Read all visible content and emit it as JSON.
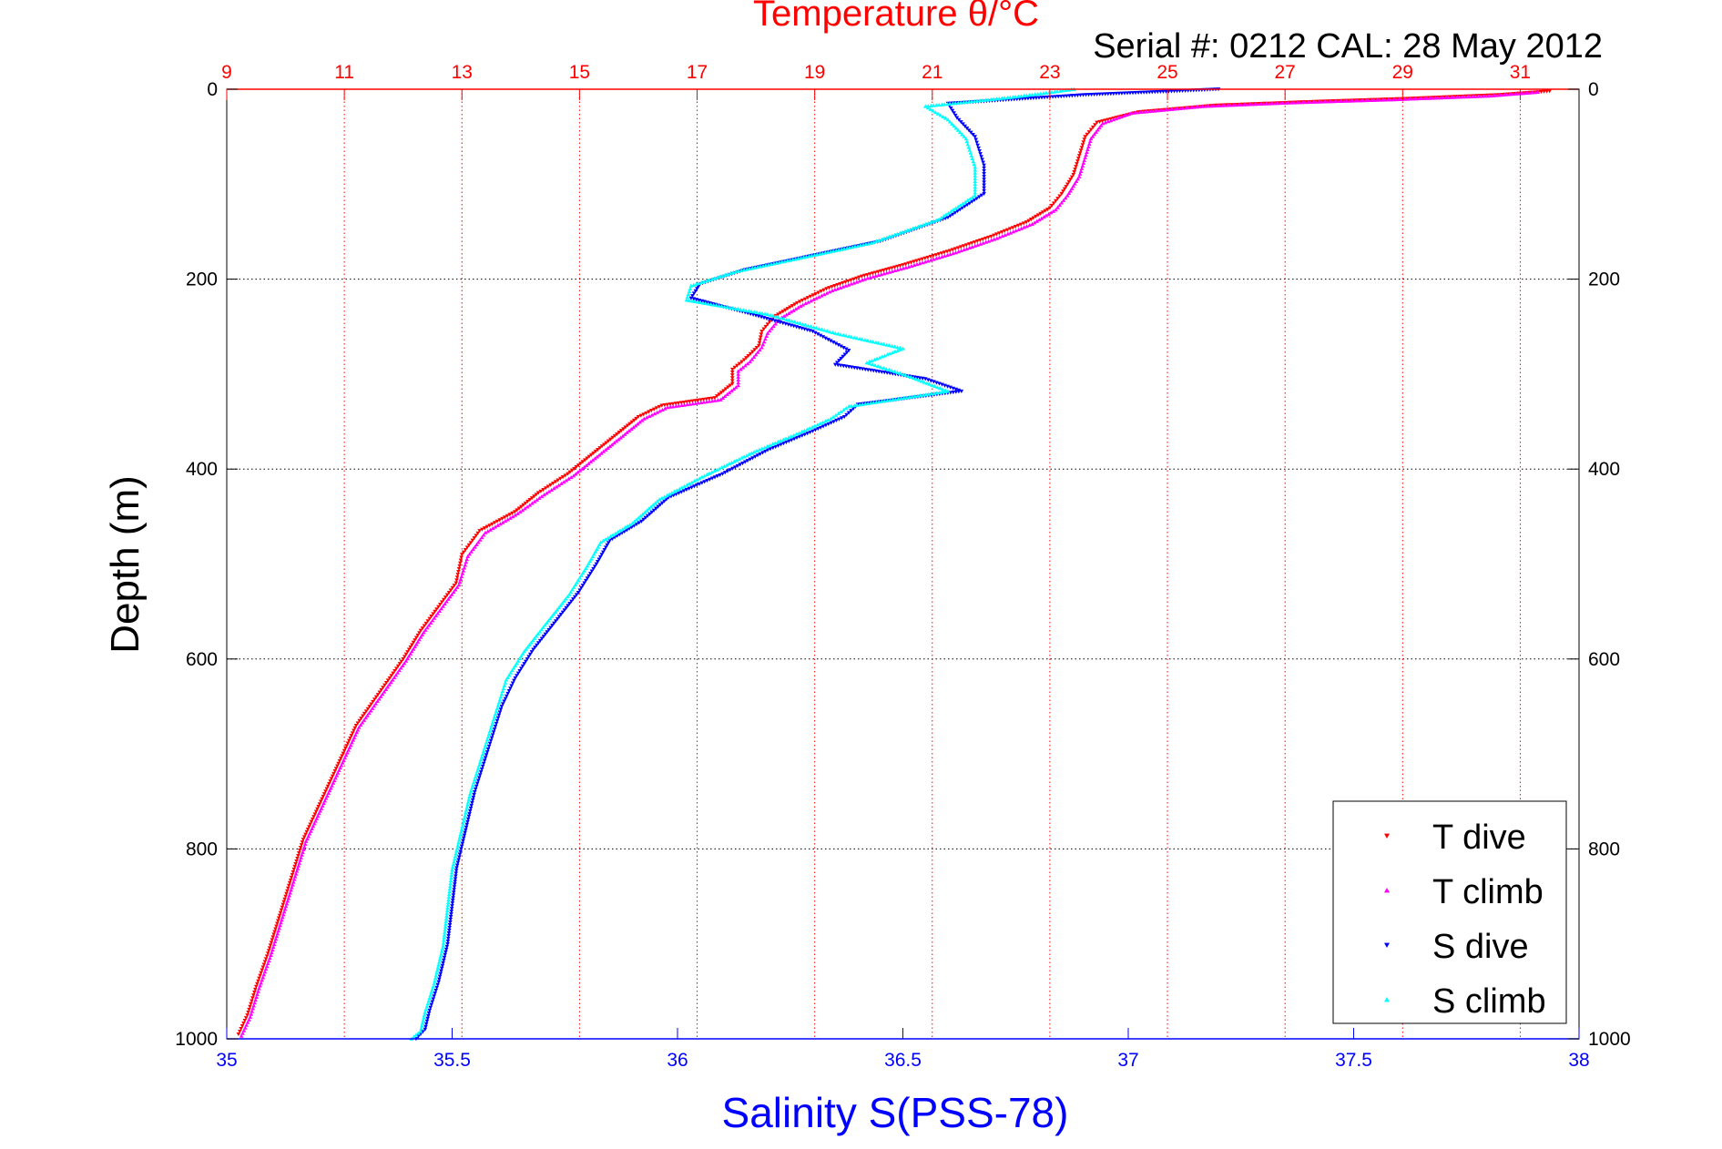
{
  "chart_data": {
    "type": "scatter",
    "title": "Temperature θ/°C",
    "subtitle": "Serial #: 0212  CAL: 28 May 2012",
    "xlabel": "Salinity S(PSS-78)",
    "x2label": "Temperature θ/°C",
    "ylabel": "Depth (m)",
    "y_reversed": true,
    "grid": true,
    "legend_position": "bottom-right",
    "salinity_axis": {
      "lim": [
        35,
        38
      ],
      "ticks": [
        35,
        35.5,
        36,
        36.5,
        37,
        37.5,
        38
      ],
      "tick_labels": [
        "35",
        "35.5",
        "36",
        "36.5",
        "37",
        "37.5",
        "38"
      ]
    },
    "temperature_axis": {
      "lim": [
        9,
        32
      ],
      "ticks": [
        9,
        11,
        13,
        15,
        17,
        19,
        21,
        23,
        25,
        27,
        29,
        31
      ],
      "tick_labels": [
        "9",
        "11",
        "13",
        "15",
        "17",
        "19",
        "21",
        "23",
        "25",
        "27",
        "29",
        "31"
      ]
    },
    "depth_axis": {
      "lim": [
        0,
        1000
      ],
      "ticks": [
        0,
        200,
        400,
        600,
        800,
        1000
      ],
      "tick_labels": [
        "0",
        "200",
        "400",
        "600",
        "800",
        "1000"
      ]
    },
    "colors": {
      "temperature_axis": "#ff0000",
      "salinity_axis": "#0000ff",
      "grid": "#000000",
      "frame": "#000000"
    },
    "series": [
      {
        "name": "T dive",
        "axis": "temperature",
        "marker": "triangle-down",
        "color": "#ff0000",
        "points": [
          [
            31.5,
            2
          ],
          [
            30.6,
            6
          ],
          [
            29,
            10
          ],
          [
            27.5,
            13
          ],
          [
            25.8,
            17
          ],
          [
            24.5,
            24
          ],
          [
            23.8,
            35
          ],
          [
            23.6,
            50
          ],
          [
            23.5,
            70
          ],
          [
            23.4,
            90
          ],
          [
            23.2,
            110
          ],
          [
            23,
            125
          ],
          [
            22.6,
            140
          ],
          [
            22,
            155
          ],
          [
            21.3,
            170
          ],
          [
            20.5,
            185
          ],
          [
            19.8,
            197
          ],
          [
            19.2,
            210
          ],
          [
            18.7,
            225
          ],
          [
            18.3,
            240
          ],
          [
            18.1,
            255
          ],
          [
            18.05,
            270
          ],
          [
            17.8,
            285
          ],
          [
            17.6,
            295
          ],
          [
            17.6,
            310
          ],
          [
            17.3,
            325
          ],
          [
            16.4,
            333
          ],
          [
            16,
            345
          ],
          [
            15.6,
            365
          ],
          [
            15.2,
            385
          ],
          [
            14.8,
            405
          ],
          [
            14.3,
            425
          ],
          [
            13.9,
            445
          ],
          [
            13.3,
            465
          ],
          [
            13,
            490
          ],
          [
            12.9,
            520
          ],
          [
            12.6,
            545
          ],
          [
            12.3,
            570
          ],
          [
            12,
            600
          ],
          [
            11.6,
            635
          ],
          [
            11.2,
            670
          ],
          [
            10.9,
            710
          ],
          [
            10.6,
            750
          ],
          [
            10.3,
            790
          ],
          [
            10.1,
            830
          ],
          [
            9.9,
            870
          ],
          [
            9.7,
            910
          ],
          [
            9.5,
            945
          ],
          [
            9.35,
            975
          ],
          [
            9.2,
            995
          ]
        ]
      },
      {
        "name": "T climb",
        "axis": "temperature",
        "marker": "triangle-up",
        "color": "#ff00ff",
        "points": [
          [
            31.3,
            3
          ],
          [
            30.5,
            7
          ],
          [
            28.8,
            11
          ],
          [
            27.2,
            14
          ],
          [
            25.6,
            18
          ],
          [
            24.4,
            25
          ],
          [
            23.9,
            36
          ],
          [
            23.7,
            52
          ],
          [
            23.6,
            72
          ],
          [
            23.5,
            92
          ],
          [
            23.3,
            112
          ],
          [
            23.1,
            127
          ],
          [
            22.7,
            142
          ],
          [
            22.1,
            157
          ],
          [
            21.4,
            172
          ],
          [
            20.6,
            187
          ],
          [
            19.9,
            199
          ],
          [
            19.3,
            212
          ],
          [
            18.8,
            227
          ],
          [
            18.4,
            242
          ],
          [
            18.2,
            257
          ],
          [
            18.1,
            272
          ],
          [
            17.9,
            287
          ],
          [
            17.7,
            297
          ],
          [
            17.7,
            312
          ],
          [
            17.4,
            327
          ],
          [
            16.5,
            335
          ],
          [
            16.1,
            347
          ],
          [
            15.7,
            367
          ],
          [
            15.3,
            387
          ],
          [
            14.9,
            407
          ],
          [
            14.4,
            427
          ],
          [
            13.95,
            447
          ],
          [
            13.4,
            467
          ],
          [
            13.1,
            492
          ],
          [
            12.95,
            522
          ],
          [
            12.65,
            547
          ],
          [
            12.35,
            572
          ],
          [
            12.05,
            602
          ],
          [
            11.65,
            637
          ],
          [
            11.25,
            672
          ],
          [
            10.95,
            712
          ],
          [
            10.65,
            752
          ],
          [
            10.35,
            792
          ],
          [
            10.15,
            832
          ],
          [
            9.95,
            872
          ],
          [
            9.75,
            912
          ],
          [
            9.55,
            947
          ],
          [
            9.4,
            977
          ],
          [
            9.25,
            997
          ]
        ]
      },
      {
        "name": "S dive",
        "axis": "salinity",
        "marker": "triangle-down",
        "color": "#0000ff",
        "points": [
          [
            37.2,
            0
          ],
          [
            36.9,
            6
          ],
          [
            36.6,
            15
          ],
          [
            36.62,
            30
          ],
          [
            36.66,
            50
          ],
          [
            36.68,
            80
          ],
          [
            36.68,
            110
          ],
          [
            36.6,
            135
          ],
          [
            36.45,
            160
          ],
          [
            36.3,
            175
          ],
          [
            36.15,
            190
          ],
          [
            36.05,
            205
          ],
          [
            36.03,
            220
          ],
          [
            36.15,
            235
          ],
          [
            36.3,
            255
          ],
          [
            36.38,
            275
          ],
          [
            36.35,
            290
          ],
          [
            36.55,
            305
          ],
          [
            36.63,
            318
          ],
          [
            36.4,
            332
          ],
          [
            36.37,
            345
          ],
          [
            36.3,
            360
          ],
          [
            36.2,
            380
          ],
          [
            36.1,
            405
          ],
          [
            35.98,
            430
          ],
          [
            35.92,
            455
          ],
          [
            35.85,
            475
          ],
          [
            35.82,
            500
          ],
          [
            35.78,
            530
          ],
          [
            35.73,
            560
          ],
          [
            35.68,
            590
          ],
          [
            35.64,
            620
          ],
          [
            35.61,
            650
          ],
          [
            35.59,
            680
          ],
          [
            35.57,
            710
          ],
          [
            35.55,
            740
          ],
          [
            35.53,
            780
          ],
          [
            35.51,
            820
          ],
          [
            35.5,
            860
          ],
          [
            35.49,
            900
          ],
          [
            35.47,
            940
          ],
          [
            35.45,
            970
          ],
          [
            35.44,
            990
          ],
          [
            35.42,
            1000
          ]
        ]
      },
      {
        "name": "S climb",
        "axis": "salinity",
        "marker": "triangle-up",
        "color": "#00ffff",
        "points": [
          [
            36.88,
            0
          ],
          [
            36.75,
            8
          ],
          [
            36.55,
            18
          ],
          [
            36.6,
            32
          ],
          [
            36.64,
            52
          ],
          [
            36.66,
            82
          ],
          [
            36.66,
            112
          ],
          [
            36.58,
            137
          ],
          [
            36.43,
            162
          ],
          [
            36.28,
            177
          ],
          [
            36.13,
            192
          ],
          [
            36.03,
            207
          ],
          [
            36.02,
            222
          ],
          [
            36.2,
            237
          ],
          [
            36.35,
            257
          ],
          [
            36.5,
            273
          ],
          [
            36.42,
            288
          ],
          [
            36.5,
            300
          ],
          [
            36.6,
            318
          ],
          [
            36.38,
            334
          ],
          [
            36.34,
            347
          ],
          [
            36.27,
            362
          ],
          [
            36.17,
            382
          ],
          [
            36.06,
            407
          ],
          [
            35.96,
            432
          ],
          [
            35.9,
            457
          ],
          [
            35.83,
            477
          ],
          [
            35.8,
            502
          ],
          [
            35.76,
            532
          ],
          [
            35.71,
            562
          ],
          [
            35.66,
            592
          ],
          [
            35.62,
            622
          ],
          [
            35.6,
            652
          ],
          [
            35.58,
            682
          ],
          [
            35.56,
            712
          ],
          [
            35.54,
            742
          ],
          [
            35.52,
            782
          ],
          [
            35.5,
            822
          ],
          [
            35.49,
            862
          ],
          [
            35.48,
            902
          ],
          [
            35.46,
            942
          ],
          [
            35.44,
            972
          ],
          [
            35.43,
            992
          ],
          [
            35.41,
            1000
          ]
        ]
      }
    ]
  }
}
